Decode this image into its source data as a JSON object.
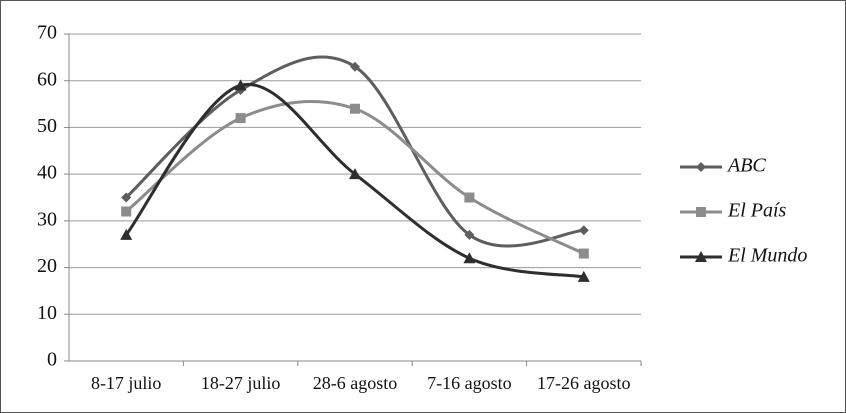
{
  "chart_data": {
    "type": "line",
    "categories": [
      "8-17 julio",
      "18-27 julio",
      "28-6 agosto",
      "7-16 agosto",
      "17-26 agosto"
    ],
    "series": [
      {
        "name": "ABC",
        "color": "#5e5e5e",
        "marker": "diamond",
        "values": [
          35,
          58,
          63,
          27,
          28
        ]
      },
      {
        "name": "El País",
        "color": "#8c8c8c",
        "marker": "square",
        "values": [
          32,
          52,
          54,
          35,
          23
        ]
      },
      {
        "name": "El Mundo",
        "color": "#2e2e2e",
        "marker": "triangle",
        "values": [
          27,
          59,
          40,
          22,
          18
        ]
      }
    ],
    "ylim": [
      0,
      70
    ],
    "yticks": [
      0,
      10,
      20,
      30,
      40,
      50,
      60,
      70
    ],
    "grid": true,
    "smooth": true,
    "legend": "right"
  }
}
